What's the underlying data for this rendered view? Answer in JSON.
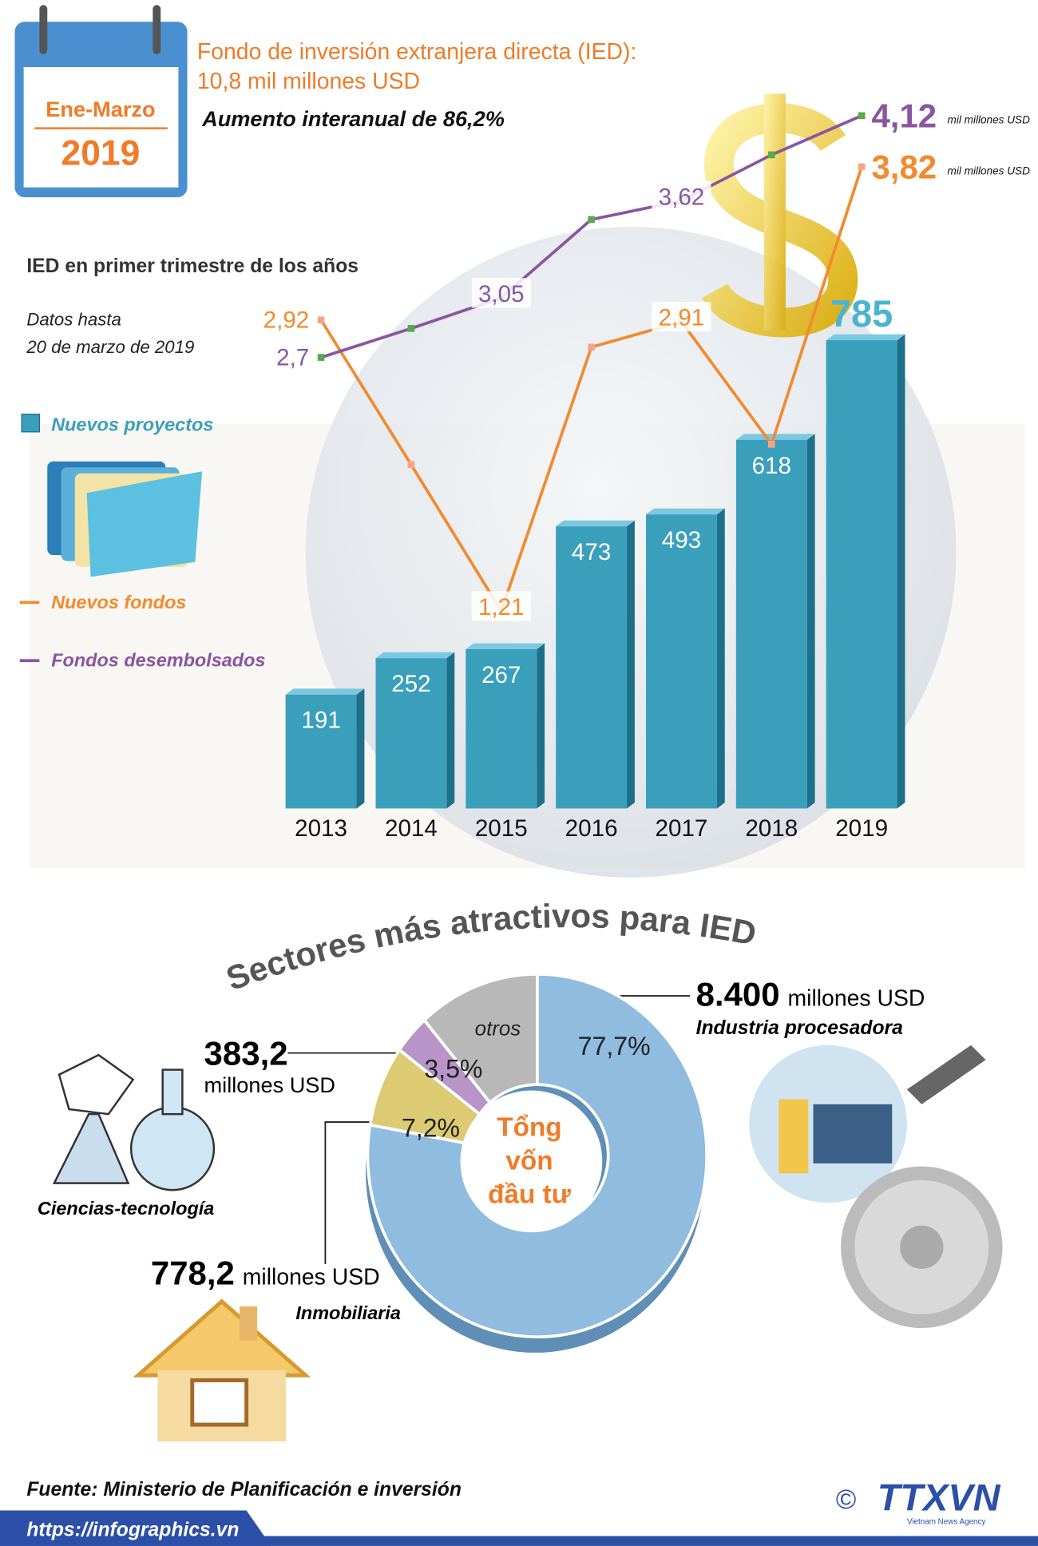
{
  "header": {
    "calendar_period": "Ene-Marzo",
    "calendar_year": "2019",
    "title_lines": [
      "Fondo de inversión extranjera directa (IED):",
      "10,8 mil millones USD"
    ],
    "subtitle": "Aumento interanual de 86,2%"
  },
  "chart_data": [
    {
      "type": "bar",
      "title": "IED en primer trimestre de los años",
      "subtitle_lines": [
        "Datos hasta",
        "20 de marzo de 2019"
      ],
      "categories": [
        "2013",
        "2014",
        "2015",
        "2016",
        "2017",
        "2018",
        "2019"
      ],
      "ylim": [
        0,
        1190
      ],
      "y2lim": [
        0.05,
        4.22
      ],
      "unit": "mil millones USD",
      "series": [
        {
          "name": "Nuevos proyectos",
          "color": "#3a9fbb",
          "values": [
            191,
            252,
            267,
            473,
            493,
            618,
            785
          ]
        },
        {
          "name": "Nuevos fondos",
          "type": "line",
          "axis": "y2",
          "color": "#f28a2e",
          "values": [
            2.92,
            2.07,
            1.21,
            2.76,
            2.91,
            2.19,
            3.82
          ],
          "value_labels": [
            "2,92",
            null,
            "1,21",
            null,
            "2,91",
            null,
            "3,82"
          ]
        },
        {
          "name": "Fondos desembolsados",
          "type": "line",
          "axis": "y2",
          "color": "#8a55a0",
          "values": [
            2.7,
            2.87,
            3.05,
            3.51,
            3.62,
            3.89,
            4.12
          ],
          "value_labels": [
            "2,7",
            null,
            "3,05",
            null,
            "3,62",
            null,
            "4,12"
          ]
        }
      ]
    },
    {
      "type": "pie",
      "title": "Sectores más atractivos para IED",
      "center_label": [
        "Tổng",
        "vốn",
        "đầu tư"
      ],
      "categories": [
        "Industria procesadora",
        "Inmobiliaria",
        "Ciencias-tecnología",
        "otros"
      ],
      "values": [
        77.7,
        7.2,
        3.5,
        11.6
      ],
      "value_labels": [
        "77,7%",
        "7,2%",
        "3,5%",
        null
      ],
      "colors": [
        "#8fbcdf",
        "#dccb72",
        "#b994c8",
        "#b8b8b8"
      ],
      "amount_labels": [
        "8.400",
        "778,2",
        "383,2",
        null
      ],
      "amount_unit": "millones USD"
    }
  ],
  "footer": {
    "source": "Fuente: Ministerio de Planificación e inversión",
    "url": "https://infographics.vn",
    "copyright": "©",
    "brand": "TTXVN",
    "brand_sub": "Vietnam News Agency"
  }
}
